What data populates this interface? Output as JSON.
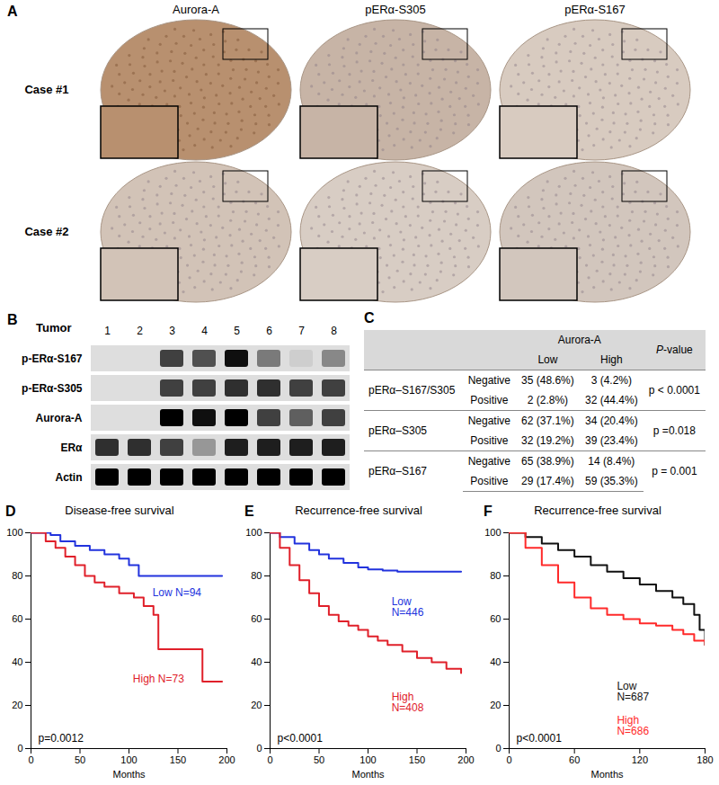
{
  "ihc": {
    "letter": "A",
    "columns": [
      "Aurora-A",
      "pERα-S305",
      "pERα-S167"
    ],
    "rows": [
      "Case #1",
      "Case #2"
    ]
  },
  "blot": {
    "letter": "B",
    "lane_title": "Tumor",
    "lanes": [
      1,
      2,
      3,
      4,
      5,
      6,
      7,
      8
    ],
    "band_intensity_range": [
      0,
      1
    ],
    "rows": [
      {
        "name": "p-ERα-S167",
        "intensity": [
          0,
          0,
          0.8,
          0.75,
          0.95,
          0.6,
          0.3,
          0.55
        ]
      },
      {
        "name": "p-ERα-S305",
        "intensity": [
          0,
          0,
          0.8,
          0.8,
          0.85,
          0.85,
          0.8,
          0.8
        ]
      },
      {
        "name": "Aurora-A",
        "intensity": [
          0,
          0,
          1,
          0.95,
          1,
          0.8,
          0.7,
          0.8
        ]
      },
      {
        "name": "ERα",
        "intensity": [
          0.85,
          0.85,
          0.8,
          0.5,
          0.9,
          0.9,
          0.9,
          0.9
        ]
      },
      {
        "name": "Actin",
        "intensity": [
          1,
          1,
          1,
          1,
          1,
          1,
          1,
          1
        ]
      }
    ]
  },
  "table": {
    "letter": "C",
    "header": {
      "group": "Aurora-A",
      "levels": [
        "Low",
        "High"
      ],
      "p": "P-value"
    },
    "groups": [
      {
        "label": "pERα–S167/S305",
        "rows": [
          [
            "Negative",
            "35 (48.6%)",
            "3 (4.2%)"
          ],
          [
            "Positive",
            "2 (2.8%)",
            "32 (44.4%)"
          ]
        ],
        "p": "p < 0.0001"
      },
      {
        "label": "pERα–S305",
        "rows": [
          [
            "Negative",
            "62 (37.1%)",
            "34 (20.4%)"
          ],
          [
            "Positive",
            "32 (19.2%)",
            "39 (23.4%)"
          ]
        ],
        "p": "p =0.018"
      },
      {
        "label": "pERα–S167",
        "rows": [
          [
            "Negative",
            "65 (38.9%)",
            "14 (8.4%)"
          ],
          [
            "Positive",
            "29 (17.4%)",
            "59 (35.3%)"
          ]
        ],
        "p": "p = 0.001"
      }
    ]
  },
  "chart_data": [
    {
      "letter": "D",
      "type": "line",
      "title": "Disease-free survival",
      "x_label": "Months",
      "line_style": "step",
      "xlim": [
        0,
        200
      ],
      "xticks": [
        0,
        50,
        100,
        150,
        200
      ],
      "ylim": [
        0,
        100
      ],
      "yticks": [
        0,
        20,
        40,
        60,
        80,
        100
      ],
      "annotation": "p=0.0012",
      "series": [
        {
          "name": "Low",
          "n_label": "N=94",
          "color": "#2233dd",
          "x": [
            0,
            20,
            30,
            45,
            60,
            75,
            90,
            100,
            110,
            195
          ],
          "values": [
            100,
            99,
            96,
            94,
            92,
            90,
            88,
            85,
            80,
            80
          ]
        },
        {
          "name": "High",
          "n_label": "N=73",
          "color": "#e0202a",
          "x": [
            0,
            15,
            25,
            35,
            45,
            55,
            65,
            75,
            90,
            105,
            115,
            125,
            130,
            170,
            175,
            195
          ],
          "values": [
            100,
            96,
            93,
            89,
            85,
            80,
            77,
            75,
            72,
            70,
            66,
            62,
            46,
            46,
            31,
            31
          ]
        }
      ]
    },
    {
      "letter": "E",
      "type": "line",
      "title": "Recurrence-free survival",
      "x_label": "Months",
      "line_style": "step",
      "xlim": [
        0,
        200
      ],
      "xticks": [
        0,
        50,
        100,
        150,
        200
      ],
      "ylim": [
        0,
        100
      ],
      "yticks": [
        0,
        20,
        40,
        60,
        80,
        100
      ],
      "annotation": "p<0.0001",
      "series": [
        {
          "name": "Low",
          "n_label": "N=446",
          "color": "#2233dd",
          "x": [
            0,
            10,
            25,
            40,
            50,
            60,
            75,
            90,
            100,
            115,
            130,
            195
          ],
          "values": [
            100,
            98,
            95,
            92,
            90,
            88,
            86,
            84,
            83,
            82.5,
            82,
            82
          ]
        },
        {
          "name": "High",
          "n_label": "N=408",
          "color": "#e0202a",
          "x": [
            0,
            10,
            20,
            30,
            40,
            50,
            60,
            70,
            80,
            90,
            100,
            110,
            120,
            135,
            150,
            165,
            180,
            195
          ],
          "values": [
            100,
            93,
            85,
            78,
            72,
            66,
            62,
            59,
            57,
            55,
            52,
            50,
            48,
            45,
            42,
            40,
            37,
            35
          ]
        }
      ]
    },
    {
      "letter": "F",
      "type": "line",
      "title": "Recurrence-free survival",
      "x_label": "Months",
      "line_style": "step",
      "xlim": [
        0,
        180
      ],
      "xticks": [
        0,
        60,
        120,
        180
      ],
      "ylim": [
        0,
        100
      ],
      "yticks": [
        0,
        20,
        40,
        60,
        80,
        100
      ],
      "annotation": "p<0.0001",
      "series": [
        {
          "name": "Low",
          "n_label": "N=687",
          "color": "#111111",
          "x": [
            0,
            15,
            30,
            45,
            60,
            75,
            90,
            105,
            120,
            135,
            150,
            160,
            170,
            175,
            180
          ],
          "values": [
            100,
            98,
            95,
            92,
            89,
            85,
            82,
            79,
            76,
            73,
            70,
            67,
            62,
            55,
            48
          ]
        },
        {
          "name": "High",
          "n_label": "N=686",
          "color": "#ff2a2a",
          "x": [
            0,
            15,
            30,
            45,
            60,
            75,
            90,
            105,
            120,
            135,
            150,
            160,
            170,
            180
          ],
          "values": [
            100,
            93,
            85,
            77,
            70,
            65,
            62,
            60,
            58,
            57,
            55,
            53,
            50,
            48
          ]
        }
      ]
    }
  ]
}
